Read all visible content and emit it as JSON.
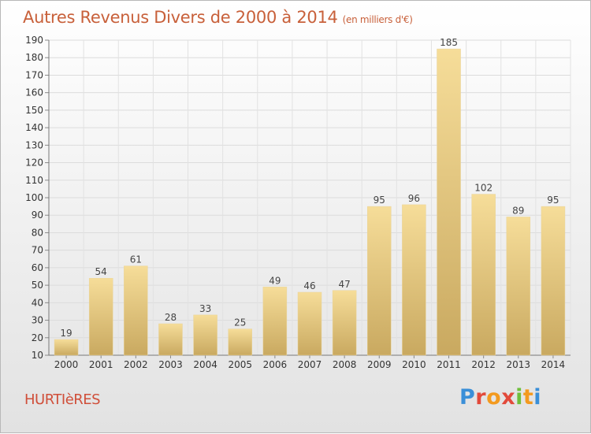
{
  "title": {
    "main": "Autres Revenus Divers de 2000 à 2014",
    "unit": "(en milliers d'€)"
  },
  "town": "HURTIèRES",
  "brand": {
    "logo_text": "Proxiti"
  },
  "colors": {
    "title": "#c8603a",
    "bar_light": "#f6dd99",
    "bar_dark": "#c9a960",
    "town": "#d04f3a"
  },
  "chart_data": {
    "type": "bar",
    "title": "Autres Revenus Divers de 2000 à 2014",
    "ylabel": "",
    "xlabel": "",
    "ylim": [
      10,
      190
    ],
    "yticks": [
      10,
      20,
      30,
      40,
      50,
      60,
      70,
      80,
      90,
      100,
      110,
      120,
      130,
      140,
      150,
      160,
      170,
      180,
      190
    ],
    "grid": true,
    "categories": [
      "2000",
      "2001",
      "2002",
      "2003",
      "2004",
      "2005",
      "2006",
      "2007",
      "2008",
      "2009",
      "2010",
      "2011",
      "2012",
      "2013",
      "2014"
    ],
    "values": [
      19,
      54,
      61,
      28,
      33,
      25,
      49,
      46,
      47,
      95,
      96,
      185,
      102,
      89,
      95
    ]
  }
}
